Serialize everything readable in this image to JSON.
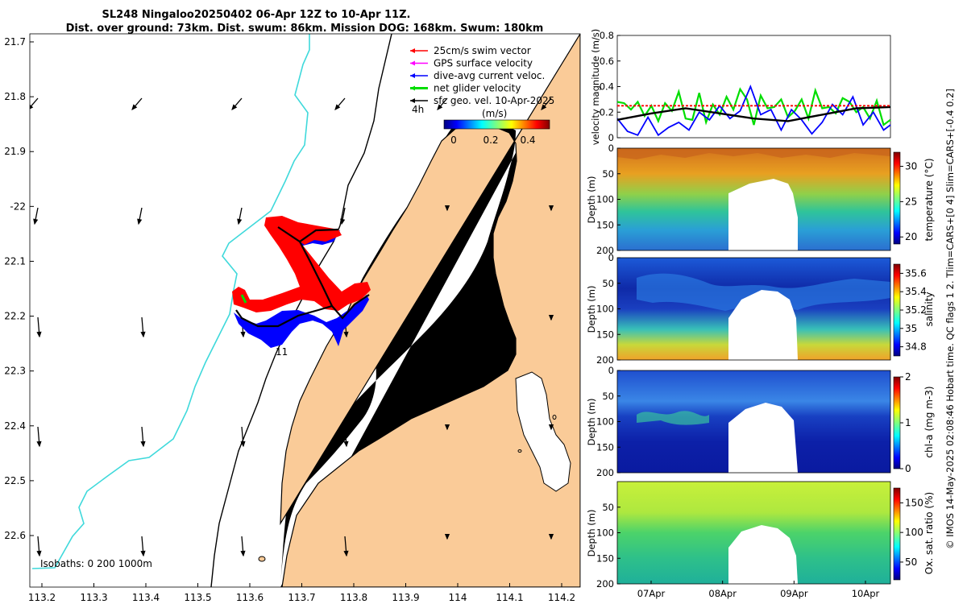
{
  "header": {
    "title_line1": "SL248 Ningaloo20250402 06-Apr 12Z to 10-Apr 11Z.",
    "title_line2": "Dist. over ground: 73km. Dist. swum: 86km. Mission DOG: 168km. Swum: 180km"
  },
  "map": {
    "lon_ticks": [
      "113.2",
      "113.3",
      "113.4",
      "113.5",
      "113.6",
      "113.7",
      "113.8",
      "113.9",
      "114",
      "114.1",
      "114.2"
    ],
    "lat_ticks": [
      "21.7",
      "21.8",
      "21.9",
      "-22",
      "22.1",
      "22.2",
      "22.3",
      "22.4",
      "22.5",
      "22.6"
    ],
    "legend": [
      {
        "label": "25cm/s swim vector",
        "color": "#ff0000"
      },
      {
        "label": "GPS surface velocity",
        "color": "#ff00ff"
      },
      {
        "label": "dive-avg current veloc.",
        "color": "#0000ff"
      },
      {
        "label": "net glider velocity",
        "color": "#00dd00"
      },
      {
        "label": "sfc geo. vel. 10-Apr-2025",
        "color": "#000000"
      }
    ],
    "legend_timescale": "4h",
    "colorbar_label": "(m/s)",
    "colorbar_ticks": [
      "0",
      "0.2",
      "0.4"
    ],
    "isobaths_label": "Isobaths: 0   200  1000m",
    "track_label": "11",
    "land_color": "#facb98",
    "isobath_color": "#3fd9db"
  },
  "chart_data": [
    {
      "type": "line",
      "title": "",
      "ylabel": "velocity magnitude (m/s)",
      "ylim": [
        0,
        0.8
      ],
      "yticks": [
        "0",
        "0.2",
        "0.4",
        "0.6",
        "0.8"
      ],
      "xlim": [
        0,
        4
      ],
      "series": [
        {
          "name": "net glider velocity",
          "color": "#00dd00",
          "x": [
            0,
            0.1,
            0.2,
            0.3,
            0.4,
            0.5,
            0.6,
            0.7,
            0.8,
            0.9,
            1.0,
            1.1,
            1.2,
            1.3,
            1.4,
            1.5,
            1.6,
            1.7,
            1.8,
            1.9,
            2.0,
            2.1,
            2.2,
            2.3,
            2.4,
            2.5,
            2.6,
            2.7,
            2.8,
            2.9,
            3.0,
            3.1,
            3.2,
            3.3,
            3.4,
            3.5,
            3.6,
            3.7,
            3.8,
            3.9,
            4.0
          ],
          "values": [
            0.28,
            0.27,
            0.22,
            0.28,
            0.17,
            0.25,
            0.13,
            0.27,
            0.21,
            0.36,
            0.15,
            0.14,
            0.35,
            0.12,
            0.26,
            0.18,
            0.32,
            0.22,
            0.38,
            0.3,
            0.1,
            0.33,
            0.23,
            0.24,
            0.3,
            0.16,
            0.21,
            0.3,
            0.15,
            0.37,
            0.23,
            0.24,
            0.19,
            0.31,
            0.28,
            0.2,
            0.24,
            0.15,
            0.29,
            0.1,
            0.14
          ]
        },
        {
          "name": "dive-avg current veloc.",
          "color": "#0000ff",
          "x": [
            0,
            0.15,
            0.3,
            0.45,
            0.6,
            0.75,
            0.9,
            1.05,
            1.2,
            1.35,
            1.5,
            1.65,
            1.8,
            1.95,
            2.1,
            2.25,
            2.4,
            2.55,
            2.7,
            2.85,
            3.0,
            3.15,
            3.3,
            3.45,
            3.6,
            3.75,
            3.9,
            4.0
          ],
          "values": [
            0.15,
            0.05,
            0.02,
            0.16,
            0.02,
            0.08,
            0.12,
            0.06,
            0.2,
            0.14,
            0.25,
            0.15,
            0.21,
            0.4,
            0.18,
            0.22,
            0.06,
            0.22,
            0.14,
            0.03,
            0.12,
            0.26,
            0.18,
            0.32,
            0.1,
            0.2,
            0.06,
            0.1
          ]
        },
        {
          "name": "sfc geo. vel.",
          "color": "#000000",
          "x": [
            0,
            0.5,
            1.0,
            1.5,
            2.0,
            2.5,
            3.0,
            3.5,
            4.0
          ],
          "values": [
            0.14,
            0.19,
            0.23,
            0.19,
            0.15,
            0.13,
            0.18,
            0.23,
            0.24
          ]
        },
        {
          "name": "25cm/s swim vector",
          "color": "#ff0000",
          "x": [
            0,
            4
          ],
          "values": [
            0.25,
            0.25
          ]
        }
      ]
    },
    {
      "type": "heatmap",
      "ylabel": "Depth (m)",
      "yticks": [
        "0",
        "50",
        "100",
        "150",
        "200"
      ],
      "colorbar_label": "temperature (°C)",
      "colorbar_ticks": [
        "20",
        "25",
        "30"
      ],
      "crange": [
        19,
        32
      ]
    },
    {
      "type": "heatmap",
      "ylabel": "Depth (m)",
      "yticks": [
        "0",
        "50",
        "100",
        "150",
        "200"
      ],
      "colorbar_label": "salinity",
      "colorbar_ticks": [
        "34.8",
        "35",
        "35.2",
        "35.4",
        "35.6"
      ],
      "crange": [
        34.7,
        35.7
      ]
    },
    {
      "type": "heatmap",
      "ylabel": "Depth (m)",
      "yticks": [
        "0",
        "50",
        "100",
        "150",
        "200"
      ],
      "colorbar_label": "chl-a (mg m-3)",
      "colorbar_ticks": [
        "0",
        "1",
        "2"
      ],
      "crange": [
        0,
        2
      ]
    },
    {
      "type": "heatmap",
      "ylabel": "Depth (m)",
      "yticks": [
        "50",
        "100",
        "150",
        "200"
      ],
      "colorbar_label": "Ox. sat. ratio (%)",
      "colorbar_ticks": [
        "50",
        "100",
        "150"
      ],
      "crange": [
        20,
        175
      ],
      "xticks": [
        "07Apr",
        "08Apr",
        "09Apr",
        "10Apr"
      ]
    }
  ],
  "side_label": "© IMOS 14-May-2025 02:08:46 Hobart time. QC flags 1  2. Tlim=CARS+[0 4] Slim=CARS+[-0.4 0.2]"
}
